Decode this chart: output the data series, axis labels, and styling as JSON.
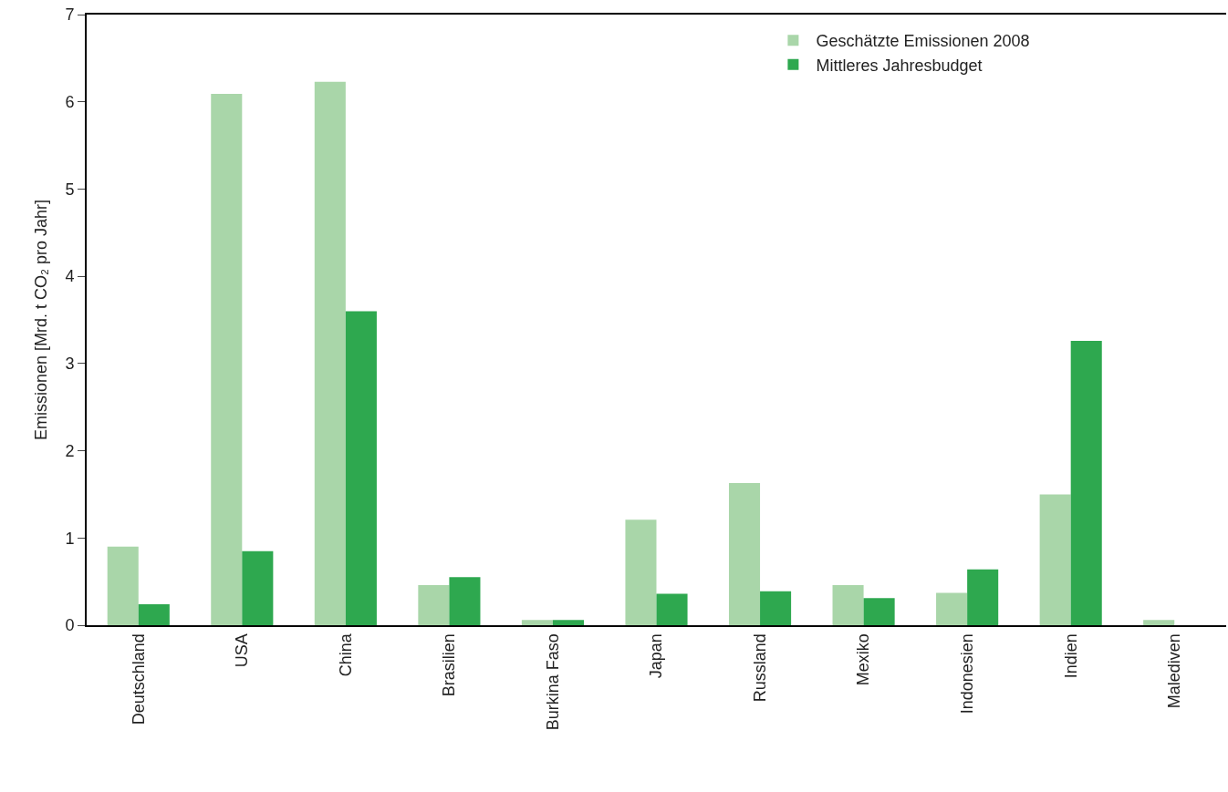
{
  "chart_data": {
    "type": "bar",
    "ylabel": "Emissionen [Mrd. t CO₂ pro Jahr]",
    "categories": [
      "Deutschland",
      "USA",
      "China",
      "Brasilien",
      "Burkina Faso",
      "Japan",
      "Russland",
      "Mexiko",
      "Indonesien",
      "Indien",
      "Malediven"
    ],
    "series": [
      {
        "name": "Geschätzte Emissionen 2008",
        "color": "#a9d6a9",
        "values": [
          0.9,
          6.09,
          6.23,
          0.46,
          0.06,
          1.21,
          1.63,
          0.46,
          0.37,
          1.5,
          0.06
        ]
      },
      {
        "name": "Mittleres Jahresbudget",
        "color": "#2ea84f",
        "values": [
          0.24,
          0.85,
          3.6,
          0.55,
          0.06,
          0.36,
          0.39,
          0.31,
          0.64,
          3.26,
          null
        ]
      }
    ],
    "ylim": [
      0,
      7
    ],
    "yticks": [
      0,
      1,
      2,
      3,
      4,
      5,
      6,
      7
    ],
    "legend": "top right"
  }
}
